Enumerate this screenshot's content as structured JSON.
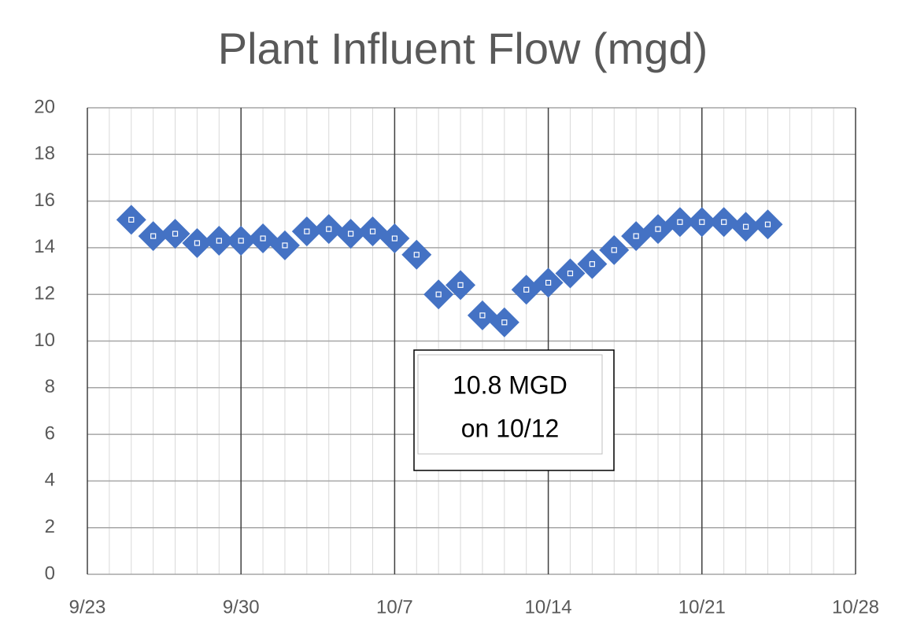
{
  "chart_data": {
    "type": "scatter",
    "title": "Plant Influent Flow (mgd)",
    "x": [
      "9/25",
      "9/26",
      "9/27",
      "9/28",
      "9/29",
      "9/30",
      "10/1",
      "10/2",
      "10/3",
      "10/4",
      "10/5",
      "10/6",
      "10/7",
      "10/8",
      "10/9",
      "10/10",
      "10/11",
      "10/12",
      "10/13",
      "10/14",
      "10/15",
      "10/16",
      "10/17",
      "10/18",
      "10/19",
      "10/20",
      "10/21",
      "10/22",
      "10/23",
      "10/24"
    ],
    "series": [
      {
        "color": "#4472c4",
        "marker": "diamond",
        "values": [
          15.2,
          14.5,
          14.6,
          14.2,
          14.3,
          14.3,
          14.4,
          14.1,
          14.7,
          14.8,
          14.6,
          14.7,
          14.4,
          13.7,
          12.0,
          12.4,
          11.1,
          10.8,
          12.2,
          12.5,
          12.9,
          13.3,
          13.9,
          14.5,
          14.8,
          15.1,
          15.1,
          15.1,
          14.9,
          15.0
        ]
      }
    ],
    "xlim": [
      "9/23",
      "10/28"
    ],
    "xticks": [
      "9/23",
      "9/30",
      "10/7",
      "10/14",
      "10/21",
      "10/28"
    ],
    "ylim": [
      0,
      20
    ],
    "yticks": [
      0,
      2,
      4,
      6,
      8,
      10,
      12,
      14,
      16,
      18,
      20
    ],
    "grid": true,
    "minor_grid": true,
    "annotation": {
      "lines": [
        "10.8 MGD",
        "on 10/12"
      ]
    }
  }
}
